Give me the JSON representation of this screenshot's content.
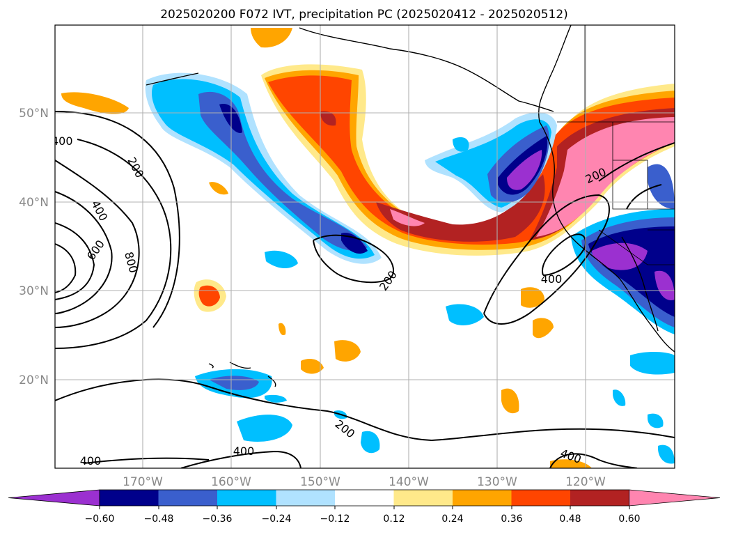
{
  "title": "2025020200 F072 IVT, precipitation PC (2025020412 - 2025020512)",
  "map": {
    "lat_labels": [
      "50°N",
      "40°N",
      "30°N",
      "20°N"
    ],
    "lon_labels": [
      "170°W",
      "160°W",
      "150°W",
      "140°W",
      "130°W",
      "120°W"
    ],
    "contour_labels": [
      "400",
      "200",
      "400",
      "600",
      "800",
      "200",
      "200",
      "400",
      "200",
      "400",
      "400",
      "400"
    ]
  },
  "colorbar": {
    "ticks": [
      "−0.60",
      "−0.48",
      "−0.36",
      "−0.24",
      "−0.12",
      "0.12",
      "0.24",
      "0.36",
      "0.48",
      "0.60"
    ],
    "colors": [
      "#9b30d0",
      "#00008b",
      "#3a5fcd",
      "#00bfff",
      "#b0e2ff",
      "#ffffff",
      "#ffe98a",
      "#ffa500",
      "#ff4500",
      "#b22222",
      "#ff85b0"
    ]
  },
  "chart_data": {
    "type": "heatmap",
    "title": "2025020200 F072 IVT, precipitation PC (2025020412 - 2025020512)",
    "fields": [
      "IVT",
      "precipitation PC"
    ],
    "contour_levels": [
      200,
      400,
      600,
      800
    ],
    "color_levels": [
      -0.6,
      -0.48,
      -0.36,
      -0.24,
      -0.12,
      0.12,
      0.24,
      0.36,
      0.48,
      0.6
    ],
    "lon_range": [
      -180,
      -110
    ],
    "lat_range": [
      10,
      60
    ],
    "grid": true
  }
}
